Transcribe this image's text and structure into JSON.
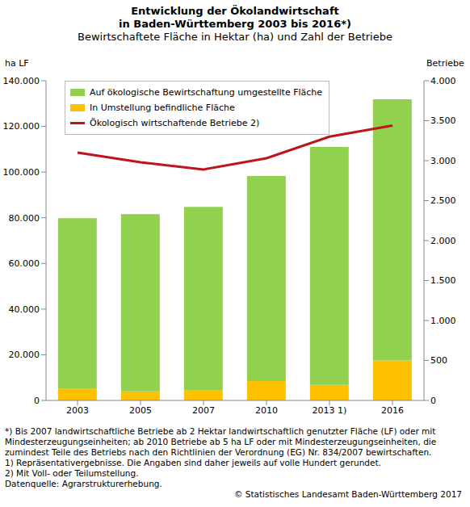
{
  "chart_data": {
    "type": "bar",
    "title": "Entwicklung der Ökolandwirtschaft",
    "title_line2": "in Baden-Württemberg 2003 bis 2016*)",
    "subtitle": "Bewirtschaftete Fläche in Hektar (ha)  und Zahl der Betriebe",
    "y_label": "ha LF",
    "y2_label": "Betriebe",
    "categories": [
      "2003",
      "2005",
      "2007",
      "2010",
      "2013 1)",
      "2016"
    ],
    "series": [
      {
        "name": "Auf ökologische Bewirtschaftung umgestellte Fläche",
        "color": "#92d050",
        "type": "bar",
        "values": [
          74800,
          77600,
          80200,
          89800,
          104200,
          114400
        ]
      },
      {
        "name": "In Umstellung befindliche Fläche",
        "color": "#ffc000",
        "type": "bar",
        "values": [
          5000,
          4000,
          4600,
          8500,
          6800,
          17500
        ]
      },
      {
        "name": "Ökologisch wirtschaftende Betriebe 2)",
        "color": "#c0141c",
        "type": "line",
        "axis": "y2",
        "marker": "none",
        "values": [
          3100,
          2980,
          2890,
          3030,
          3300,
          3440
        ]
      }
    ],
    "stacked": true,
    "grid": false,
    "legend": "upper left",
    "ylim": [
      0,
      140000
    ],
    "yticks": [
      0,
      {
        "value": 20000,
        "label": "20.000"
      },
      {
        "value": 40000,
        "label": "40.000"
      },
      {
        "value": 60000,
        "label": "60.000"
      },
      {
        "value": 80000,
        "label": "80.000"
      },
      {
        "value": 100000,
        "label": "100.000"
      },
      {
        "value": 120000,
        "label": "120.000"
      },
      {
        "value": 140000,
        "label": "140.000"
      }
    ],
    "y2lim": [
      0,
      4000
    ],
    "y2ticks": [
      0,
      500,
      {
        "value": 1000,
        "label": "1.000"
      },
      {
        "value": 1500,
        "label": "1.500"
      },
      {
        "value": 2000,
        "label": "2.000"
      },
      {
        "value": 2500,
        "label": "2.500"
      },
      {
        "value": 3000,
        "label": "3.000"
      },
      {
        "value": 3500,
        "label": "3.500"
      },
      {
        "value": 4000,
        "label": "4.000"
      }
    ],
    "footnotes": [
      "*) Bis 2007 landwirtschaftliche Betriebe ab 2 Hektar landwirtschaftlich genutzter Fläche (LF) oder mit Mindesterzeugungseinheiten; ab 2010 Betriebe ab 5 ha LF oder mit Mindesterzeugungseinheiten, die zumindest Teile des Betriebs nach den Richtlinien der Verordnung (EG) Nr. 834/2007 bewirtschaften.",
      "1) Repräsentativergebnisse. Die Angaben sind daher jeweils auf volle Hundert gerundet.",
      "2) Mit Voll- oder Teilumstellung.",
      "Datenquelle: Agrarstrukturerhebung."
    ],
    "source": "© Statistisches Landesamt Baden-Württemberg 2017"
  }
}
